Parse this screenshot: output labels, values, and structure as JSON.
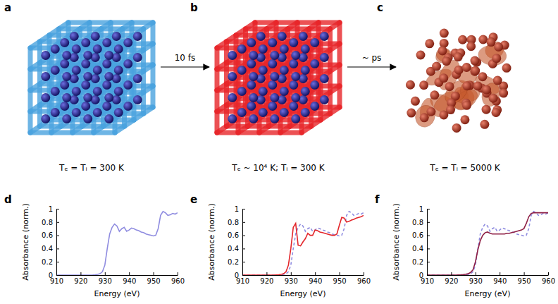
{
  "chart_data": [
    {
      "type": "line",
      "title": "d",
      "xlabel": "Energy (eV)",
      "ylabel": "Absorbance (norm.)",
      "xlim": [
        910,
        960
      ],
      "ylim": [
        0,
        1
      ],
      "xticks": [
        910,
        920,
        930,
        940,
        950,
        960
      ],
      "yticks": [
        0,
        0.2,
        0.4,
        0.6,
        0.8,
        1
      ],
      "x": [
        910,
        911,
        912,
        913,
        914,
        915,
        916,
        917,
        918,
        919,
        920,
        921,
        922,
        923,
        924,
        925,
        926,
        927,
        928,
        929,
        930,
        931,
        932,
        933,
        934,
        935,
        936,
        937,
        938,
        939,
        940,
        941,
        942,
        943,
        944,
        945,
        946,
        947,
        948,
        949,
        950,
        951,
        952,
        953,
        954,
        955,
        956,
        957,
        958,
        959,
        960
      ],
      "series": [
        {
          "color": "#8f8ce0",
          "line_style": "solid",
          "values": [
            0,
            0,
            0,
            0,
            0,
            0,
            0,
            0,
            0,
            0,
            0,
            0,
            0,
            0,
            0,
            0.002,
            0.005,
            0.01,
            0.02,
            0.05,
            0.15,
            0.4,
            0.62,
            0.72,
            0.77,
            0.74,
            0.66,
            0.7,
            0.72,
            0.66,
            0.68,
            0.71,
            0.7,
            0.68,
            0.67,
            0.65,
            0.64,
            0.62,
            0.61,
            0.6,
            0.59,
            0.6,
            0.7,
            0.9,
            0.96,
            0.94,
            0.9,
            0.91,
            0.93,
            0.92,
            0.94
          ]
        }
      ]
    },
    {
      "type": "line",
      "title": "e",
      "xlabel": "Energy (eV)",
      "ylabel": "Absorbance (norm.)",
      "xlim": [
        910,
        960
      ],
      "ylim": [
        0,
        1
      ],
      "xticks": [
        910,
        920,
        930,
        940,
        950,
        960
      ],
      "yticks": [
        0,
        0.2,
        0.4,
        0.6,
        0.8,
        1
      ],
      "x": [
        910,
        911,
        912,
        913,
        914,
        915,
        916,
        917,
        918,
        919,
        920,
        921,
        922,
        923,
        924,
        925,
        926,
        927,
        928,
        929,
        930,
        931,
        932,
        933,
        934,
        935,
        936,
        937,
        938,
        939,
        940,
        941,
        942,
        943,
        944,
        945,
        946,
        947,
        948,
        949,
        950,
        951,
        952,
        953,
        954,
        955,
        956,
        957,
        958,
        959,
        960
      ],
      "series": [
        {
          "color": "#8f8ce0",
          "line_style": "dashed",
          "values": [
            0,
            0,
            0,
            0,
            0,
            0,
            0,
            0,
            0,
            0,
            0,
            0,
            0,
            0,
            0,
            0.002,
            0.005,
            0.01,
            0.02,
            0.05,
            0.15,
            0.4,
            0.62,
            0.72,
            0.77,
            0.74,
            0.66,
            0.7,
            0.72,
            0.66,
            0.68,
            0.71,
            0.7,
            0.68,
            0.67,
            0.65,
            0.64,
            0.62,
            0.61,
            0.6,
            0.59,
            0.6,
            0.7,
            0.9,
            0.96,
            0.94,
            0.9,
            0.91,
            0.93,
            0.92,
            0.94
          ]
        },
        {
          "color": "#e3262b",
          "line_style": "solid",
          "values": [
            0,
            0,
            0,
            0,
            0,
            0,
            0,
            0,
            0,
            0,
            0,
            0,
            0,
            0,
            0.003,
            0.005,
            0.01,
            0.02,
            0.05,
            0.15,
            0.4,
            0.72,
            0.78,
            0.45,
            0.44,
            0.5,
            0.55,
            0.63,
            0.6,
            0.6,
            0.68,
            0.67,
            0.65,
            0.64,
            0.63,
            0.62,
            0.61,
            0.6,
            0.6,
            0.62,
            0.75,
            0.87,
            0.86,
            0.8,
            0.81,
            0.83,
            0.84,
            0.86,
            0.87,
            0.88,
            0.9
          ]
        }
      ]
    },
    {
      "type": "line",
      "title": "f",
      "xlabel": "Energy (eV)",
      "ylabel": "Absorbance (norm.)",
      "xlim": [
        910,
        960
      ],
      "ylim": [
        0,
        1
      ],
      "xticks": [
        910,
        920,
        930,
        940,
        950,
        960
      ],
      "yticks": [
        0,
        0.2,
        0.4,
        0.6,
        0.8,
        1
      ],
      "x": [
        910,
        911,
        912,
        913,
        914,
        915,
        916,
        917,
        918,
        919,
        920,
        921,
        922,
        923,
        924,
        925,
        926,
        927,
        928,
        929,
        930,
        931,
        932,
        933,
        934,
        935,
        936,
        937,
        938,
        939,
        940,
        941,
        942,
        943,
        944,
        945,
        946,
        947,
        948,
        949,
        950,
        951,
        952,
        953,
        954,
        955,
        956,
        957,
        958,
        959,
        960
      ],
      "series": [
        {
          "color": "#8f8ce0",
          "line_style": "dashed",
          "values": [
            0,
            0,
            0,
            0,
            0,
            0,
            0,
            0,
            0,
            0,
            0,
            0,
            0,
            0,
            0,
            0.002,
            0.005,
            0.01,
            0.02,
            0.05,
            0.15,
            0.4,
            0.62,
            0.72,
            0.77,
            0.74,
            0.66,
            0.7,
            0.72,
            0.66,
            0.68,
            0.71,
            0.7,
            0.68,
            0.67,
            0.65,
            0.64,
            0.62,
            0.61,
            0.6,
            0.59,
            0.6,
            0.7,
            0.9,
            0.96,
            0.94,
            0.9,
            0.91,
            0.93,
            0.92,
            0.94
          ]
        },
        {
          "color": "#8e1f45",
          "line_style": "solid",
          "values": [
            0,
            0,
            0,
            0,
            0,
            0,
            0,
            0,
            0,
            0,
            0,
            0,
            0,
            0.003,
            0.005,
            0.008,
            0.012,
            0.02,
            0.04,
            0.08,
            0.2,
            0.38,
            0.52,
            0.6,
            0.64,
            0.65,
            0.63,
            0.62,
            0.62,
            0.62,
            0.62,
            0.62,
            0.62,
            0.63,
            0.63,
            0.64,
            0.65,
            0.66,
            0.67,
            0.68,
            0.7,
            0.78,
            0.88,
            0.93,
            0.94,
            0.94,
            0.94,
            0.94,
            0.94,
            0.94,
            0.94
          ]
        }
      ]
    }
  ],
  "diagram": {
    "panels": [
      {
        "label": "a",
        "caption": "Tₑ = Tᵢ = 300 K"
      },
      {
        "label": "b",
        "caption": "Tₑ ~ 10⁴ K; Tᵢ = 300 K"
      },
      {
        "label": "c",
        "caption": "Tₑ = Tᵢ = 5000 K"
      }
    ],
    "arrows": [
      {
        "label": "10 fs"
      },
      {
        "label": "~ ps"
      }
    ]
  }
}
